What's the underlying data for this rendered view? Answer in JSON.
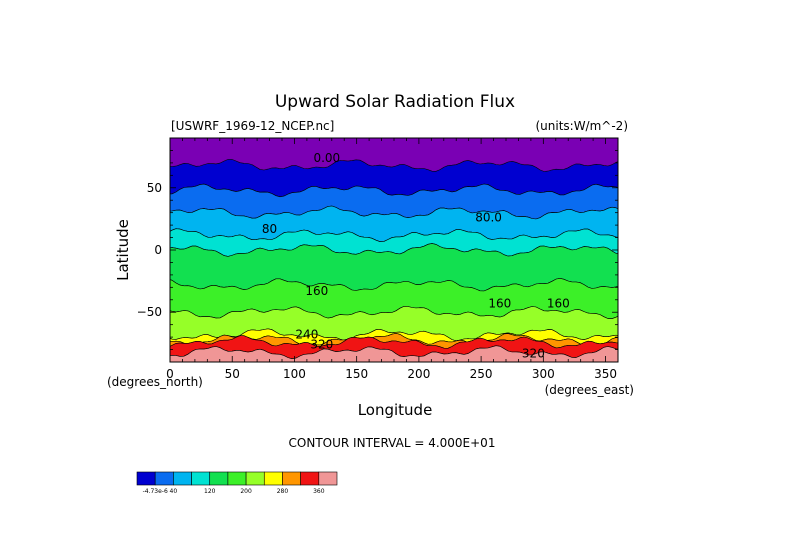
{
  "chart_data": {
    "type": "contour",
    "title": "Upward Solar Radiation Flux",
    "subtitle_left": "[USWRF_1969-12_NCEP.nc]",
    "subtitle_right": "(units:W/m^-2)",
    "xlabel": "Longitude",
    "ylabel": "Latitude",
    "x_unit_label": "(degrees_east)",
    "y_unit_label": "(degrees_north)",
    "xlim": [
      0,
      360
    ],
    "ylim": [
      -90,
      90
    ],
    "x_ticks": [
      0,
      50,
      100,
      150,
      200,
      250,
      300,
      350
    ],
    "y_ticks": [
      50,
      0,
      -50
    ],
    "y_tick_labels": [
      "50",
      "0",
      "−50"
    ],
    "contour_interval_text": "CONTOUR INTERVAL = 4.000E+01",
    "bands": [
      {
        "lat_top": 90,
        "lat_bottom": 68,
        "color": "#7a00b4"
      },
      {
        "lat_top": 68,
        "lat_bottom": 48,
        "color": "#0000d0"
      },
      {
        "lat_top": 48,
        "lat_bottom": 30,
        "color": "#0a6cf0"
      },
      {
        "lat_top": 30,
        "lat_bottom": 12,
        "color": "#00b4f0"
      },
      {
        "lat_top": 12,
        "lat_bottom": 0,
        "color": "#00e2d2"
      },
      {
        "lat_top": 0,
        "lat_bottom": -28,
        "color": "#12e050"
      },
      {
        "lat_top": -28,
        "lat_bottom": -50,
        "color": "#3cf028"
      },
      {
        "lat_top": -50,
        "lat_bottom": -68,
        "color": "#96ff28"
      },
      {
        "lat_top": -68,
        "lat_bottom": -72,
        "color": "#ffff00"
      },
      {
        "lat_top": -72,
        "lat_bottom": -74,
        "color": "#ff9600"
      },
      {
        "lat_top": -74,
        "lat_bottom": -82,
        "color": "#f01414"
      },
      {
        "lat_top": -82,
        "lat_bottom": -90,
        "color": "#f09696"
      }
    ],
    "contour_labels": [
      {
        "text": "0.00",
        "lon": 126,
        "lat": 74
      },
      {
        "text": "80.0",
        "lon": 256,
        "lat": 26
      },
      {
        "text": "80",
        "lon": 80,
        "lat": 17
      },
      {
        "text": "160",
        "lon": 118,
        "lat": -33
      },
      {
        "text": "160",
        "lon": 265,
        "lat": -43
      },
      {
        "text": "160",
        "lon": 312,
        "lat": -43
      },
      {
        "text": "240",
        "lon": 110,
        "lat": -68
      },
      {
        "text": "320",
        "lon": 122,
        "lat": -76
      },
      {
        "text": "320",
        "lon": 292,
        "lat": -83
      }
    ],
    "colorbar": {
      "colors": [
        "#0000d0",
        "#0a6cf0",
        "#00b4f0",
        "#00e2d2",
        "#12e050",
        "#3cf028",
        "#96ff28",
        "#ffff00",
        "#ff9600",
        "#f01414",
        "#f09696"
      ],
      "labels": [
        {
          "text": "-4.73e-6",
          "index": 0
        },
        {
          "text": "40",
          "index": 1
        },
        {
          "text": "120",
          "index": 3
        },
        {
          "text": "200",
          "index": 5
        },
        {
          "text": "280",
          "index": 7
        },
        {
          "text": "360",
          "index": 9
        }
      ]
    }
  }
}
